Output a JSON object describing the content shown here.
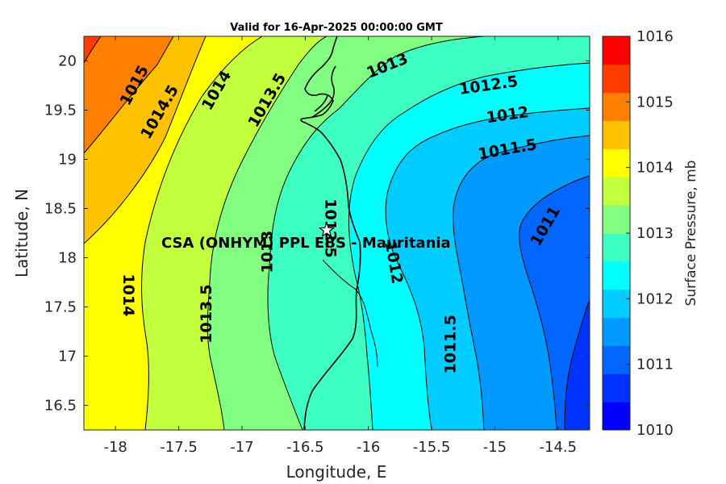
{
  "title": "Valid for 16-Apr-2025 00:00:00 GMT",
  "site_label": "CSA (ONHYM) PPL EBS - Mauritania",
  "colorbar_title": "Surface Pressure, mb",
  "colorbar_ticks": [
    "1010",
    "1011",
    "1012",
    "1013",
    "1014",
    "1015",
    "1016"
  ],
  "colorbar_colors": [
    "#0000ff",
    "#0033ff",
    "#0066ff",
    "#0099ff",
    "#00ccff",
    "#00ffff",
    "#3dffc2",
    "#80ff80",
    "#c2ff3d",
    "#ffff00",
    "#ffc200",
    "#ff8000",
    "#ff3d00",
    "#ff0000"
  ],
  "chart_data": {
    "type": "heatmap",
    "title": "Valid for 16-Apr-2025 00:00:00 GMT",
    "xlabel": "Longitude, E",
    "ylabel": "Latitude, N",
    "xlim": [
      -18.25,
      -14.25
    ],
    "ylim": [
      16.25,
      20.25
    ],
    "xticks": [
      -18,
      -17.5,
      -17,
      -16.5,
      -16,
      -15.5,
      -15,
      -14.5
    ],
    "yticks": [
      16.5,
      17,
      17.5,
      18,
      18.5,
      19,
      19.5,
      20
    ],
    "xtick_labels": [
      "-18",
      "-17.5",
      "-17",
      "-16.5",
      "-16",
      "-15.5",
      "-15",
      "-14.5"
    ],
    "ytick_labels": [
      "16.5",
      "17",
      "17.5",
      "18",
      "18.5",
      "19",
      "19.5",
      "20"
    ],
    "site": {
      "lon": -16.33,
      "lat": 18.28
    },
    "contour_labels": [
      {
        "text": "1015",
        "lon": -17.85,
        "lat": 19.75,
        "angle": -62
      },
      {
        "text": "1014.5",
        "lon": -17.65,
        "lat": 19.48,
        "angle": -60
      },
      {
        "text": "1014",
        "lon": -17.2,
        "lat": 19.7,
        "angle": -60
      },
      {
        "text": "1013.5",
        "lon": -16.8,
        "lat": 19.6,
        "angle": -60
      },
      {
        "text": "1013",
        "lon": -15.85,
        "lat": 19.95,
        "angle": -22
      },
      {
        "text": "1012.5",
        "lon": -15.05,
        "lat": 19.75,
        "angle": -8
      },
      {
        "text": "1012",
        "lon": -14.9,
        "lat": 19.45,
        "angle": -8
      },
      {
        "text": "1011.5",
        "lon": -14.9,
        "lat": 19.1,
        "angle": -10
      },
      {
        "text": "1011",
        "lon": -14.6,
        "lat": 18.32,
        "angle": -60
      },
      {
        "text": "1014",
        "lon": -17.9,
        "lat": 17.62,
        "angle": 90
      },
      {
        "text": "1013.5",
        "lon": -17.28,
        "lat": 17.43,
        "angle": -90
      },
      {
        "text": "1013",
        "lon": -16.8,
        "lat": 18.06,
        "angle": -90
      },
      {
        "text": "1012.5",
        "lon": -16.3,
        "lat": 18.3,
        "angle": 90
      },
      {
        "text": "1012",
        "lon": -15.8,
        "lat": 17.95,
        "angle": 80
      },
      {
        "text": "1011.5",
        "lon": -15.35,
        "lat": 17.12,
        "angle": -90
      }
    ]
  }
}
